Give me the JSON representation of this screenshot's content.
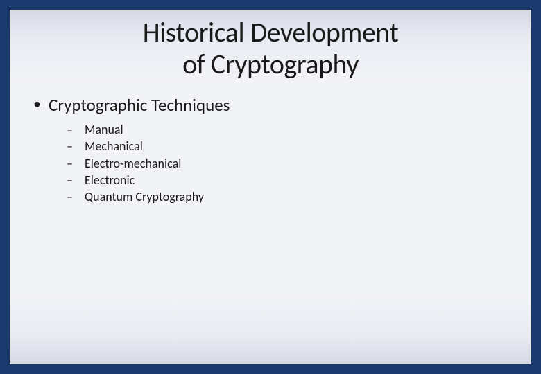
{
  "slide": {
    "background_color": "#1a3a6e",
    "inner_gradient_top": "#d6dae6",
    "inner_gradient_mid": "#f2f3f7",
    "title": "Historical Development\nof Cryptography",
    "title_fontsize": 40,
    "title_color": "#1a1a1a",
    "bullets": {
      "level1": [
        {
          "text": "Cryptographic Techniques",
          "children": [
            "Manual",
            "Mechanical",
            "Electro-mechanical",
            "Electronic",
            "Quantum Cryptography"
          ]
        }
      ],
      "level1_fontsize": 25,
      "level2_fontsize": 18,
      "bullet_color": "#1a1a1a",
      "text_color": "#1a1a1a"
    }
  }
}
